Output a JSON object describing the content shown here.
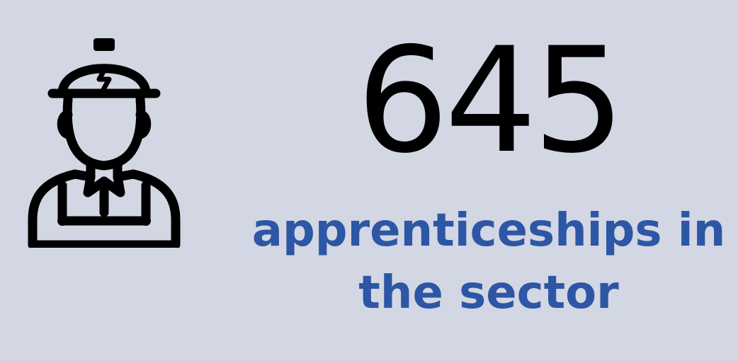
{
  "stat": {
    "number": "645",
    "caption_line1": "apprenticeships in",
    "caption_line2": "the sector"
  },
  "icon": {
    "name": "electrician-worker-icon"
  },
  "colors": {
    "background": "#d2d7e3",
    "accent": "#2d56a5",
    "number": "#000000"
  }
}
